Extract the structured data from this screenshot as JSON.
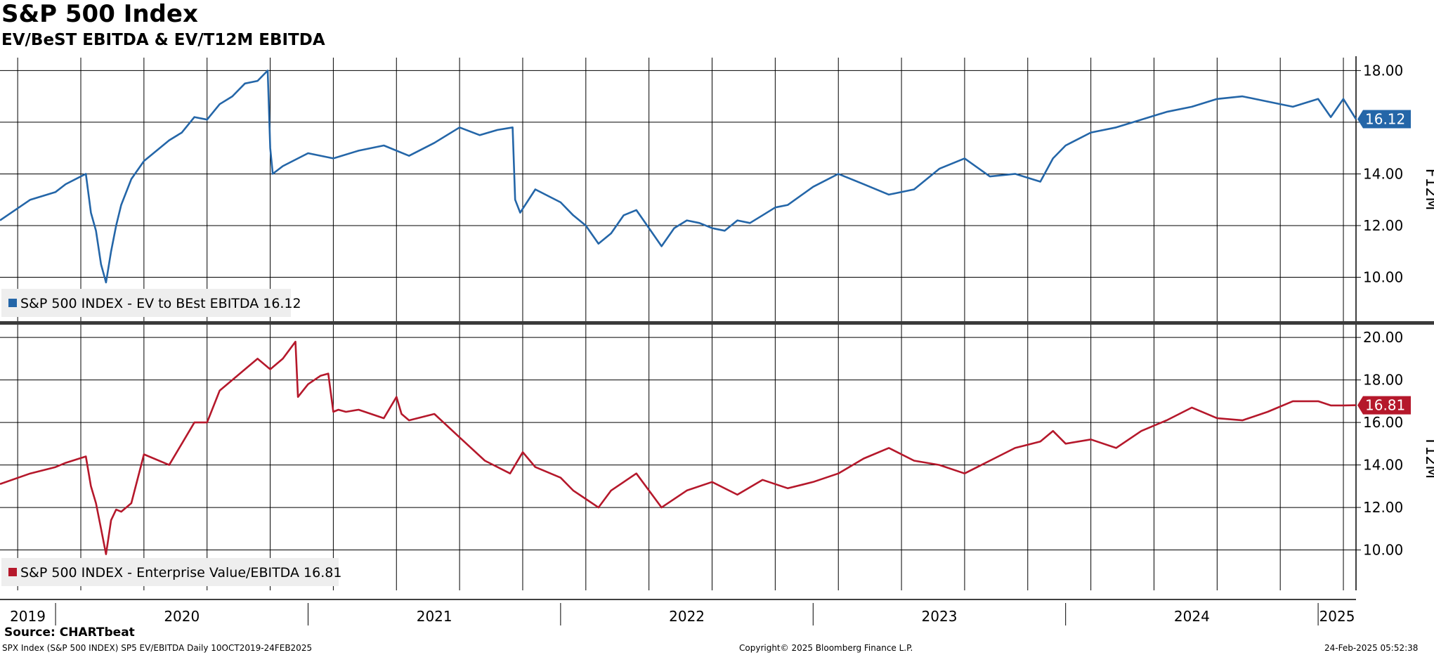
{
  "title": "S&P 500 Index",
  "subtitle": "EV/BeST EBITDA & EV/T12M EBITDA",
  "source": "Source: CHARTbeat",
  "footer": {
    "left": "SPX Index (S&P 500 INDEX) SP5 EV/EBITDA  Daily 10OCT2019-24FEB2025",
    "center": "Copyright© 2025 Bloomberg Finance L.P.",
    "right": "24-Feb-2025 05:52:38"
  },
  "colors": {
    "series_top": "#2466a8",
    "series_bottom": "#b5182b",
    "grid": "#000000"
  },
  "chart_data": [
    {
      "type": "line",
      "panel": "top",
      "axis_label": "F12M",
      "ylim": [
        8.3,
        18.5
      ],
      "y_ticks": [
        "10.00",
        "12.00",
        "14.00",
        "16.00",
        "18.00"
      ],
      "x_range": [
        2019.78,
        2025.15
      ],
      "grid": true,
      "legend_position": "bottom-left",
      "last_value_label": "16.12",
      "series": [
        {
          "name": "S&P 500 INDEX - EV to BEst EBITDA 16.12",
          "x": [
            2019.78,
            2019.9,
            2020.0,
            2020.04,
            2020.12,
            2020.14,
            2020.16,
            2020.18,
            2020.2,
            2020.22,
            2020.24,
            2020.26,
            2020.3,
            2020.35,
            2020.45,
            2020.5,
            2020.55,
            2020.6,
            2020.65,
            2020.7,
            2020.75,
            2020.8,
            2020.84,
            2020.85,
            2020.86,
            2020.9,
            2021.0,
            2021.1,
            2021.2,
            2021.3,
            2021.4,
            2021.5,
            2021.6,
            2021.68,
            2021.75,
            2021.81,
            2021.82,
            2021.84,
            2021.9,
            2022.0,
            2022.05,
            2022.1,
            2022.15,
            2022.2,
            2022.25,
            2022.3,
            2022.35,
            2022.4,
            2022.45,
            2022.5,
            2022.55,
            2022.6,
            2022.65,
            2022.7,
            2022.75,
            2022.8,
            2022.85,
            2022.9,
            2023.0,
            2023.1,
            2023.2,
            2023.3,
            2023.4,
            2023.5,
            2023.6,
            2023.7,
            2023.8,
            2023.9,
            2023.95,
            2024.0,
            2024.1,
            2024.2,
            2024.3,
            2024.4,
            2024.5,
            2024.6,
            2024.7,
            2024.8,
            2024.9,
            2025.0,
            2025.05,
            2025.1,
            2025.15
          ],
          "y": [
            12.2,
            13.0,
            13.3,
            13.6,
            14.0,
            12.5,
            11.8,
            10.5,
            9.8,
            11.0,
            12.0,
            12.8,
            13.8,
            14.5,
            15.3,
            15.6,
            16.2,
            16.1,
            16.7,
            17.0,
            17.5,
            17.6,
            18.0,
            15.0,
            14.0,
            14.3,
            14.8,
            14.6,
            14.9,
            15.1,
            14.7,
            15.2,
            15.8,
            15.5,
            15.7,
            15.8,
            13.0,
            12.5,
            13.4,
            12.9,
            12.4,
            12.0,
            11.3,
            11.7,
            12.4,
            12.6,
            11.9,
            11.2,
            11.9,
            12.2,
            12.1,
            11.9,
            11.8,
            12.2,
            12.1,
            12.4,
            12.7,
            12.8,
            13.5,
            14.0,
            13.6,
            13.2,
            13.4,
            14.2,
            14.6,
            13.9,
            14.0,
            13.7,
            14.6,
            15.1,
            15.6,
            15.8,
            16.1,
            16.4,
            16.6,
            16.9,
            17.0,
            16.8,
            16.6,
            16.9,
            16.2,
            16.9,
            16.12
          ]
        }
      ]
    },
    {
      "type": "line",
      "panel": "bottom",
      "axis_label": "T12M",
      "ylim": [
        8.1,
        20.6
      ],
      "y_ticks": [
        "10.00",
        "12.00",
        "14.00",
        "16.00",
        "18.00",
        "20.00"
      ],
      "x_range": [
        2019.78,
        2025.15
      ],
      "x_ticks": [
        "2019",
        "2020",
        "2021",
        "2022",
        "2023",
        "2024",
        "2025"
      ],
      "grid": true,
      "legend_position": "bottom-left",
      "last_value_label": "16.81",
      "series": [
        {
          "name": "S&P 500 INDEX - Enterprise Value/EBITDA 16.81",
          "x": [
            2019.78,
            2019.9,
            2020.0,
            2020.04,
            2020.12,
            2020.14,
            2020.16,
            2020.18,
            2020.2,
            2020.22,
            2020.24,
            2020.26,
            2020.3,
            2020.35,
            2020.45,
            2020.5,
            2020.55,
            2020.6,
            2020.65,
            2020.7,
            2020.75,
            2020.8,
            2020.85,
            2020.9,
            2020.95,
            2020.96,
            2020.98,
            2021.0,
            2021.05,
            2021.08,
            2021.1,
            2021.12,
            2021.15,
            2021.2,
            2021.3,
            2021.35,
            2021.37,
            2021.4,
            2021.5,
            2021.6,
            2021.7,
            2021.8,
            2021.85,
            2021.9,
            2022.0,
            2022.05,
            2022.1,
            2022.15,
            2022.2,
            2022.3,
            2022.4,
            2022.5,
            2022.6,
            2022.7,
            2022.8,
            2022.9,
            2023.0,
            2023.1,
            2023.2,
            2023.3,
            2023.4,
            2023.5,
            2023.6,
            2023.7,
            2023.8,
            2023.9,
            2023.95,
            2024.0,
            2024.1,
            2024.2,
            2024.3,
            2024.4,
            2024.5,
            2024.6,
            2024.7,
            2024.8,
            2024.9,
            2025.0,
            2025.05,
            2025.1,
            2025.15
          ],
          "y": [
            13.1,
            13.6,
            13.9,
            14.1,
            14.4,
            13.0,
            12.2,
            11.0,
            9.8,
            11.4,
            11.9,
            11.8,
            12.2,
            14.5,
            14.0,
            15.0,
            16.0,
            16.0,
            17.5,
            18.0,
            18.5,
            19.0,
            18.5,
            19.0,
            19.8,
            17.2,
            17.5,
            17.8,
            18.2,
            18.3,
            16.5,
            16.6,
            16.5,
            16.6,
            16.2,
            17.2,
            16.4,
            16.1,
            16.4,
            15.3,
            14.2,
            13.6,
            14.6,
            13.9,
            13.4,
            12.8,
            12.4,
            12.0,
            12.8,
            13.6,
            12.0,
            12.8,
            13.2,
            12.6,
            13.3,
            12.9,
            13.2,
            13.6,
            14.3,
            14.8,
            14.2,
            14.0,
            13.6,
            14.2,
            14.8,
            15.1,
            15.6,
            15.0,
            15.2,
            14.8,
            15.6,
            16.1,
            16.7,
            16.2,
            16.1,
            16.5,
            17.0,
            17.0,
            16.8,
            16.8,
            16.81
          ]
        }
      ]
    }
  ]
}
